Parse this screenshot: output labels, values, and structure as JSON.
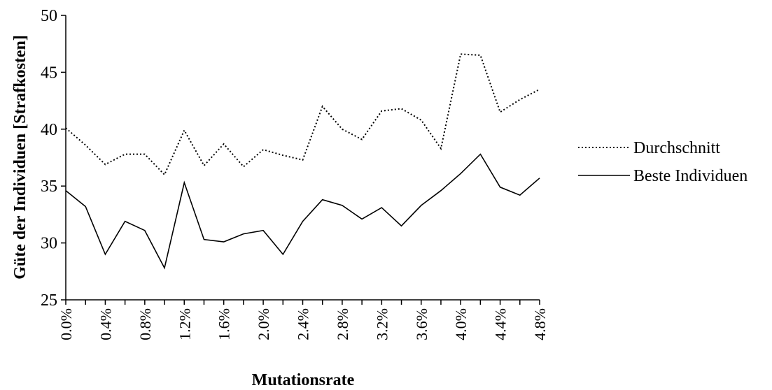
{
  "chart_data": {
    "type": "line",
    "title": "",
    "xlabel": "Mutationsrate",
    "ylabel": "Güte der Individuen [Strafkosten]",
    "ylim": [
      25,
      50
    ],
    "yticks": [
      "25",
      "30",
      "35",
      "40",
      "45",
      "50"
    ],
    "x": [
      0.0,
      0.2,
      0.4,
      0.6,
      0.8,
      1.0,
      1.2,
      1.4,
      1.6,
      1.8,
      2.0,
      2.2,
      2.4,
      2.6,
      2.8,
      3.0,
      3.2,
      3.4,
      3.6,
      3.8,
      4.0,
      4.2,
      4.4,
      4.6,
      4.8
    ],
    "xtick_labels": [
      "0.0%",
      "0.4%",
      "0.8%",
      "1.2%",
      "1.6%",
      "2.0%",
      "2.4%",
      "2.8%",
      "3.2%",
      "3.6%",
      "4.0%",
      "4.4%",
      "4.8%"
    ],
    "legend_position": "right",
    "grid": false,
    "series": [
      {
        "name": "Durchschnitt",
        "style": "dotted",
        "color": "#000000",
        "values": [
          40.1,
          38.6,
          36.9,
          37.8,
          37.8,
          36.0,
          39.9,
          36.8,
          38.7,
          36.7,
          38.2,
          37.7,
          37.3,
          42.0,
          40.0,
          39.1,
          41.6,
          41.8,
          40.8,
          38.3,
          46.6,
          46.5,
          41.5,
          42.6,
          43.5
        ]
      },
      {
        "name": "Beste Individuen",
        "style": "solid",
        "color": "#000000",
        "values": [
          34.6,
          33.2,
          29.0,
          31.9,
          31.1,
          27.8,
          35.3,
          30.3,
          30.1,
          30.8,
          31.1,
          29.0,
          31.9,
          33.8,
          33.3,
          32.1,
          33.1,
          31.5,
          33.3,
          34.6,
          36.1,
          37.8,
          34.9,
          34.2,
          35.7
        ]
      }
    ]
  }
}
